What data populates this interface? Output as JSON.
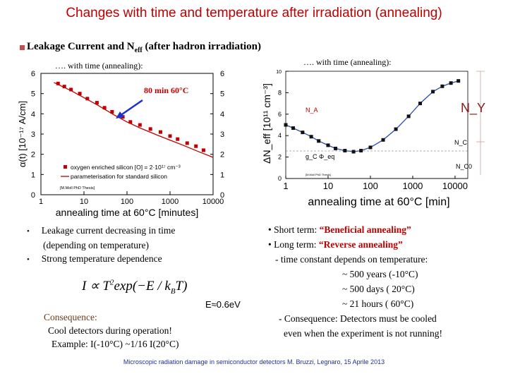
{
  "slide": {
    "title": "Changes with time and temperature after irradiation (annealing)",
    "subtitle_main": "Leakage Current and N",
    "subtitle_sub": "eff",
    "subtitle_rest": " (after hadron irradiation)",
    "left_note": "…. with time (annealing):",
    "right_note": "…. with time (annealing):",
    "footer": "Microscopic radiation damage in semiconductor detectors  M. Bruzzi, Legnaro, 15 Aprile 2013",
    "colors": {
      "title": "#c00000",
      "accent": "#c00000",
      "footer": "#2030a0"
    }
  },
  "left_chart": {
    "annotation": "80 min 60°C",
    "legend_points": "oxygen enriched silicon [O] = 2·10¹⁷ cm⁻³",
    "legend_line": "parameterisation for standard silicon",
    "credit": "[M.Moll PhD Thesis]",
    "ylabel": "α(t) [10⁻¹⁷ A/cm]",
    "xlabel": "annealing time at 60°C [minutes]",
    "xticks": [
      "1",
      "10",
      "100",
      "1000",
      "10000"
    ],
    "yticks": [
      "0",
      "1",
      "2",
      "3",
      "4",
      "5",
      "6"
    ],
    "chart_data": {
      "type": "scatter",
      "xscale": "log",
      "xlim": [
        1,
        10000
      ],
      "ylim": [
        0,
        6
      ],
      "series": [
        {
          "name": "oxygen enriched silicon [O] = 2·10¹⁷ cm⁻³",
          "x": [
            2.5,
            3.5,
            5,
            8,
            12,
            20,
            30,
            45,
            80,
            120,
            200,
            350,
            600,
            1000,
            1500,
            2500,
            4000,
            6000
          ],
          "y": [
            5.5,
            5.35,
            5.2,
            5.0,
            4.75,
            4.55,
            4.3,
            4.1,
            3.85,
            3.6,
            3.45,
            3.25,
            3.1,
            2.9,
            2.75,
            2.55,
            2.4,
            2.2
          ]
        },
        {
          "name": "parameterisation for standard silicon",
          "x": [
            2,
            5,
            10,
            20,
            50,
            100,
            200,
            500,
            1000,
            2000,
            5000,
            10000
          ],
          "y": [
            5.55,
            5.15,
            4.8,
            4.45,
            3.95,
            3.6,
            3.3,
            2.95,
            2.7,
            2.45,
            2.1,
            1.85
          ]
        }
      ]
    }
  },
  "right_chart": {
    "ylabel": "ΔN_eff [10¹¹ cm⁻³]",
    "xlabel": "annealing time at 60°C [min]",
    "xticks": [
      "1",
      "10",
      "100",
      "1000",
      "10000"
    ],
    "yticks": [
      "0",
      "2",
      "4",
      "6",
      "8",
      "10"
    ],
    "label_NA": "N_A",
    "label_NY": "N_Y",
    "label_NC": "N_C",
    "label_NC0": "N_C0",
    "label_gc": "g_C Φ_eq",
    "credit": "[M.Moll PhD Thesis]",
    "chart_data": {
      "type": "scatter",
      "xscale": "log",
      "xlim": [
        1,
        20000
      ],
      "ylim": [
        0,
        10
      ],
      "series": [
        {
          "x": [
            1,
            1.5,
            2.5,
            4,
            6,
            10,
            15,
            25,
            40,
            60,
            100,
            200,
            400,
            800,
            1500,
            3000,
            5000,
            8000,
            12000
          ],
          "y": [
            5.0,
            4.7,
            4.3,
            3.9,
            3.5,
            3.1,
            2.8,
            2.6,
            2.5,
            2.6,
            2.9,
            3.6,
            4.6,
            5.8,
            7.0,
            8.1,
            8.6,
            8.9,
            9.1
          ]
        }
      ]
    }
  },
  "bullets_left": [
    "Leakage current decreasing in time",
    "(depending on temperature)",
    "Strong temperature dependence"
  ],
  "formula": {
    "lhs": "I ∝ T",
    "exp": "2",
    "rest": "exp(−E / k",
    "sub": "B",
    "end": "T)"
  },
  "e_value": "E≈0.6eV",
  "consequence": {
    "heading": "Consequence:",
    "line1": "Cool detectors during operation!",
    "example_label": "Example: ",
    "example": "I(-10°C) ~1/16 I(20°C)"
  },
  "right_text": {
    "short_prefix": "• Short term: ",
    "short_term": "“Beneficial annealing”",
    "long_prefix": "• Long term: ",
    "long_term": "“Reverse annealing”",
    "line3": "- time constant depends on temperature:",
    "line4": "~ 500 years (-10°C)",
    "line5": "~ 500 days  ( 20°C)",
    "line6": "~  21 hours ( 60°C)",
    "line7": "- Consequence: Detectors must be cooled",
    "line8": "even when the experiment is not running!"
  }
}
